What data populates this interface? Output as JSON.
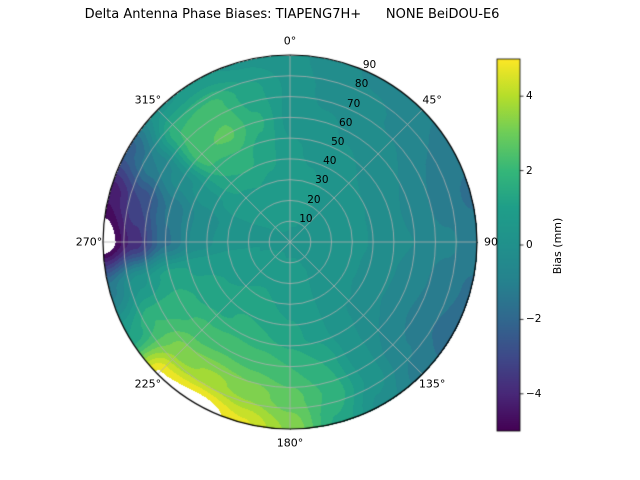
{
  "chart_data": {
    "type": "heatmap",
    "projection": "polar",
    "title": "Delta Antenna Phase Biases: TIAPENG7H+      NONE BeiDOU-E6",
    "vmin": -5,
    "vmax": 5,
    "levels_step": 0.5,
    "theta_ticks": [
      {
        "az": 0,
        "label": "0°"
      },
      {
        "az": 45,
        "label": "45°"
      },
      {
        "az": 90,
        "label": "90"
      },
      {
        "az": 135,
        "label": "135°"
      },
      {
        "az": 180,
        "label": "180°"
      },
      {
        "az": 225,
        "label": "225°"
      },
      {
        "az": 270,
        "label": "270°"
      },
      {
        "az": 315,
        "label": "315°"
      }
    ],
    "r_ticks": [
      {
        "r": 10,
        "label": "10"
      },
      {
        "r": 20,
        "label": "20"
      },
      {
        "r": 30,
        "label": "30"
      },
      {
        "r": 40,
        "label": "40"
      },
      {
        "r": 50,
        "label": "50"
      },
      {
        "r": 60,
        "label": "60"
      },
      {
        "r": 70,
        "label": "70"
      },
      {
        "r": 80,
        "label": "80"
      },
      {
        "r": 90,
        "label": "90"
      }
    ],
    "colorbar": {
      "label": "Bias (mm)",
      "ticks": [
        {
          "value": 4,
          "label": "4"
        },
        {
          "value": 2,
          "label": "2"
        },
        {
          "value": 0,
          "label": "0"
        },
        {
          "value": -2,
          "label": "−2"
        },
        {
          "value": -4,
          "label": "−4"
        }
      ]
    },
    "colormap": {
      "name": "viridis",
      "stops": [
        "#440154",
        "#482878",
        "#3e4a89",
        "#31688e",
        "#26828e",
        "#21918c",
        "#1f9e89",
        "#35b779",
        "#6dcd59",
        "#b5de2b",
        "#fde725"
      ]
    },
    "grid": {
      "az_start": 0,
      "az_step": 15,
      "r_start": 0,
      "r_step": 15,
      "values": [
        [
          0.4,
          0.6,
          0.8,
          0.6,
          0.3,
          0.4,
          0.2
        ],
        [
          0.4,
          0.6,
          0.6,
          0.4,
          0.1,
          -0.2,
          -0.4
        ],
        [
          0.4,
          0.5,
          0.5,
          0.2,
          -0.1,
          -0.4,
          -0.6
        ],
        [
          0.4,
          0.5,
          0.4,
          0.0,
          -0.3,
          -0.6,
          -0.9
        ],
        [
          0.4,
          0.5,
          0.3,
          -0.1,
          -0.5,
          -1.0,
          -1.3
        ],
        [
          0.4,
          0.4,
          0.2,
          -0.2,
          -0.6,
          -1.2,
          -1.6
        ],
        [
          0.4,
          0.4,
          0.2,
          -0.2,
          -0.5,
          -0.9,
          -1.2
        ],
        [
          0.4,
          0.4,
          0.1,
          -0.3,
          -0.7,
          -1.2,
          -1.6
        ],
        [
          0.4,
          0.4,
          0.1,
          -0.3,
          -0.8,
          -1.4,
          -1.8
        ],
        [
          0.4,
          0.4,
          0.2,
          -0.1,
          -0.5,
          -0.9,
          -1.2
        ],
        [
          0.4,
          0.5,
          0.4,
          0.2,
          0.3,
          0.4,
          -0.2
        ],
        [
          0.4,
          0.6,
          0.6,
          0.8,
          1.5,
          1.9,
          1.4
        ],
        [
          0.4,
          0.6,
          0.8,
          1.2,
          2.0,
          2.7,
          3.4
        ],
        [
          0.4,
          0.6,
          1.0,
          1.5,
          2.3,
          3.3,
          4.6
        ],
        [
          0.4,
          0.7,
          1.1,
          1.6,
          2.4,
          3.6,
          5.5
        ],
        [
          0.4,
          0.7,
          1.0,
          1.4,
          2.2,
          3.3,
          5.1
        ],
        [
          0.4,
          0.6,
          0.9,
          1.2,
          1.8,
          2.0,
          1.0
        ],
        [
          0.4,
          0.5,
          0.7,
          0.9,
          1.2,
          0.4,
          -1.2
        ],
        [
          0.4,
          0.5,
          0.3,
          -0.3,
          -1.6,
          -3.8,
          -5.6
        ],
        [
          0.4,
          0.4,
          0.2,
          -0.4,
          -1.4,
          -3.0,
          -4.4
        ],
        [
          0.4,
          0.5,
          0.6,
          0.4,
          -0.2,
          -1.0,
          -2.2
        ],
        [
          0.4,
          0.6,
          0.9,
          1.5,
          2.4,
          2.0,
          0.4
        ],
        [
          0.4,
          0.7,
          1.0,
          1.7,
          2.6,
          2.2,
          0.6
        ],
        [
          0.4,
          0.7,
          0.9,
          1.2,
          1.6,
          1.2,
          0.4
        ]
      ]
    }
  }
}
